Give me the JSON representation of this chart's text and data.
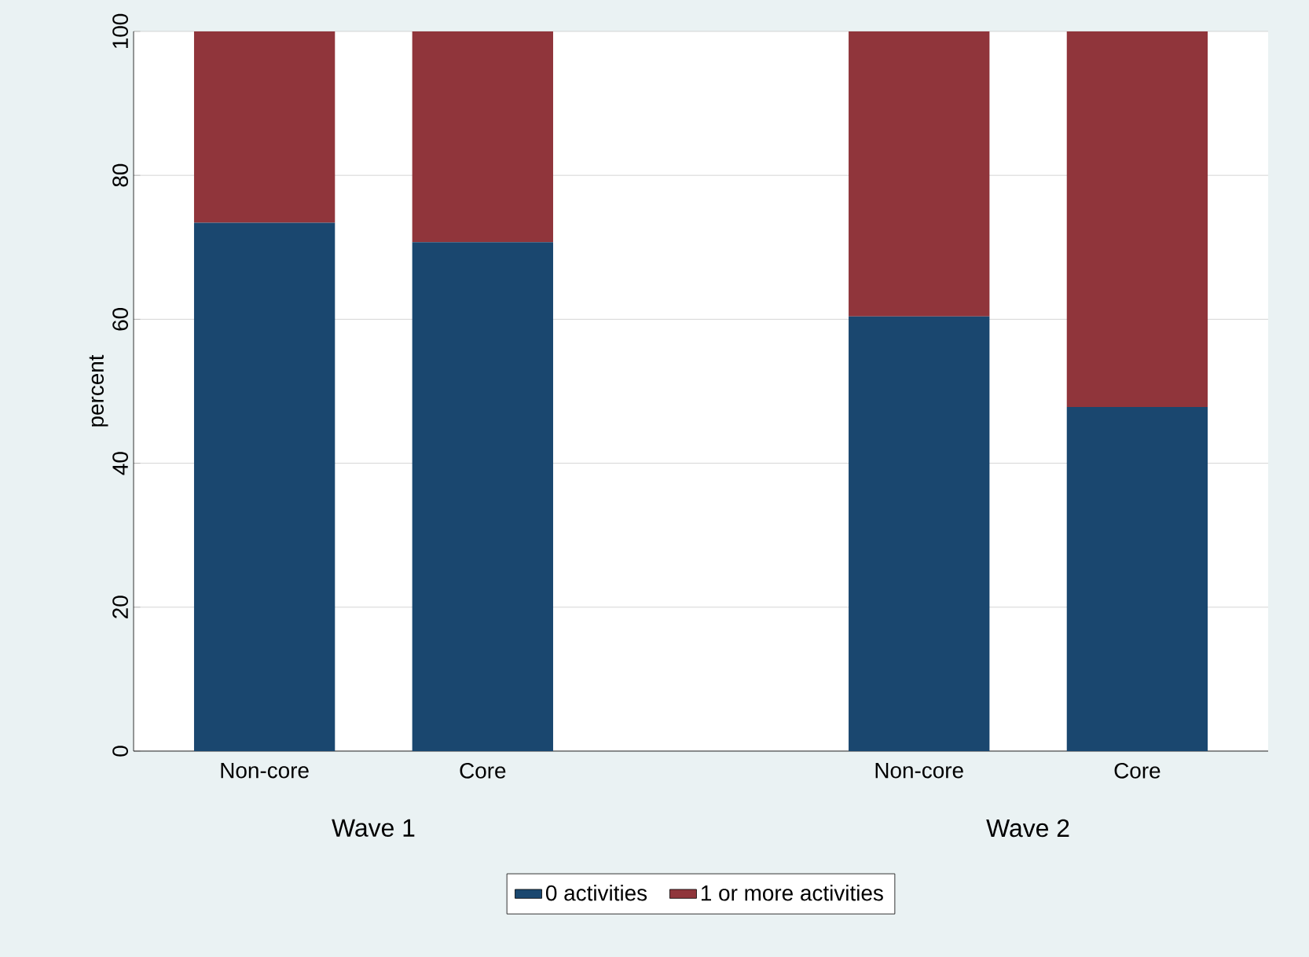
{
  "chart_data": {
    "type": "bar",
    "stacked": true,
    "categories": [
      "Non-core",
      "Core",
      null,
      "Non-core",
      "Core"
    ],
    "series": [
      {
        "name": "0 activities",
        "color": "#1a476f",
        "values": [
          73.4,
          70.7,
          null,
          60.4,
          47.8
        ]
      },
      {
        "name": "1 or more activities",
        "color": "#90353b",
        "values": [
          26.6,
          29.3,
          null,
          39.6,
          52.2
        ]
      }
    ],
    "ylabel": "percent",
    "ylim": [
      0,
      100
    ],
    "yticks": [
      0,
      20,
      40,
      60,
      80,
      100
    ],
    "grid": "y",
    "legend": "bottom",
    "annotations": [
      "Wave 1",
      "Wave 2"
    ]
  }
}
